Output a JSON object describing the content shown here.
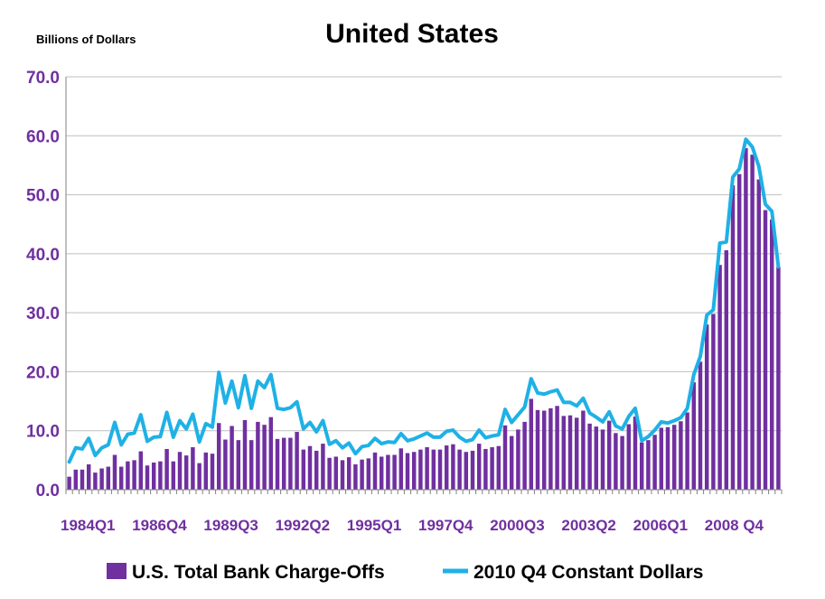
{
  "chart_data": {
    "type": "bar",
    "title": "United States",
    "units_label": "Billions of Dollars",
    "xlabel": "",
    "ylabel": "",
    "ylim": [
      0,
      70
    ],
    "yticks": [
      "0.0",
      "10.0",
      "20.0",
      "30.0",
      "40.0",
      "50.0",
      "60.0",
      "70.0"
    ],
    "grid": "horizontal",
    "legend_position": "bottom",
    "xtick_labels": [
      "1984Q1",
      "1986Q4",
      "1989Q3",
      "1992Q2",
      "1995Q1",
      "1997Q4",
      "2000Q3",
      "2003Q2",
      "2006Q1",
      "2008 Q4"
    ],
    "xtick_indices": [
      0,
      11,
      22,
      33,
      44,
      55,
      66,
      77,
      88,
      99
    ],
    "colors": {
      "bars": "#7030a0",
      "line": "#1fb1e6",
      "axis_text": "#7030a0",
      "grid": "#bfbfbf"
    },
    "series": [
      {
        "name": "U.S. Total Bank Charge-Offs",
        "type": "bar",
        "values": [
          2.2,
          3.4,
          3.4,
          4.3,
          2.9,
          3.6,
          3.9,
          5.9,
          3.9,
          4.8,
          5.0,
          6.5,
          4.1,
          4.6,
          4.8,
          6.9,
          4.8,
          6.4,
          5.8,
          7.2,
          4.5,
          6.3,
          6.1,
          11.3,
          8.5,
          10.8,
          8.4,
          11.8,
          8.4,
          11.5,
          11.0,
          12.3,
          8.6,
          8.8,
          8.8,
          9.8,
          6.8,
          7.4,
          6.6,
          7.8,
          5.4,
          5.6,
          5.0,
          5.5,
          4.3,
          5.1,
          5.3,
          6.3,
          5.6,
          5.9,
          5.9,
          7.0,
          6.2,
          6.4,
          6.8,
          7.2,
          6.8,
          6.8,
          7.5,
          7.7,
          6.8,
          6.4,
          6.6,
          7.8,
          6.9,
          7.2,
          7.4,
          10.9,
          9.1,
          10.2,
          11.5,
          15.4,
          13.5,
          13.4,
          13.8,
          14.2,
          12.5,
          12.6,
          12.2,
          13.4,
          11.2,
          10.7,
          10.2,
          11.7,
          9.6,
          9.1,
          11.1,
          12.4,
          8.0,
          8.4,
          9.3,
          10.5,
          10.6,
          11.0,
          11.6,
          13.1,
          18.2,
          21.7,
          28.0,
          29.8,
          38.1,
          40.6,
          51.6,
          53.5,
          57.9,
          56.8,
          52.6,
          47.4,
          45.8,
          37.8
        ]
      },
      {
        "name": "2010 Q4 Constant Dollars",
        "type": "line",
        "values": [
          4.7,
          7.1,
          6.9,
          8.7,
          5.8,
          7.1,
          7.6,
          11.4,
          7.6,
          9.4,
          9.6,
          12.7,
          8.2,
          8.9,
          9.0,
          13.1,
          8.9,
          11.7,
          10.3,
          12.8,
          8.1,
          11.2,
          10.6,
          19.9,
          14.7,
          18.4,
          13.9,
          19.3,
          13.8,
          18.4,
          17.3,
          19.5,
          13.8,
          13.6,
          13.9,
          14.9,
          10.3,
          11.4,
          9.8,
          11.7,
          7.7,
          8.3,
          7.1,
          7.9,
          6.1,
          7.3,
          7.5,
          8.7,
          7.8,
          8.1,
          8.0,
          9.5,
          8.3,
          8.6,
          9.1,
          9.6,
          8.9,
          8.9,
          9.9,
          10.1,
          8.9,
          8.2,
          8.5,
          10.1,
          8.8,
          9.1,
          9.3,
          13.6,
          11.4,
          12.7,
          14.0,
          18.8,
          16.4,
          16.2,
          16.6,
          16.9,
          14.8,
          14.8,
          14.2,
          15.5,
          13.0,
          12.3,
          11.5,
          13.2,
          10.8,
          10.3,
          12.4,
          13.8,
          8.3,
          9.0,
          10.1,
          11.5,
          11.3,
          11.7,
          12.2,
          13.8,
          19.5,
          22.6,
          29.6,
          30.5,
          41.8,
          42.0,
          53.0,
          54.4,
          59.4,
          58.1,
          54.8,
          48.4,
          47.2,
          37.8
        ]
      }
    ]
  }
}
